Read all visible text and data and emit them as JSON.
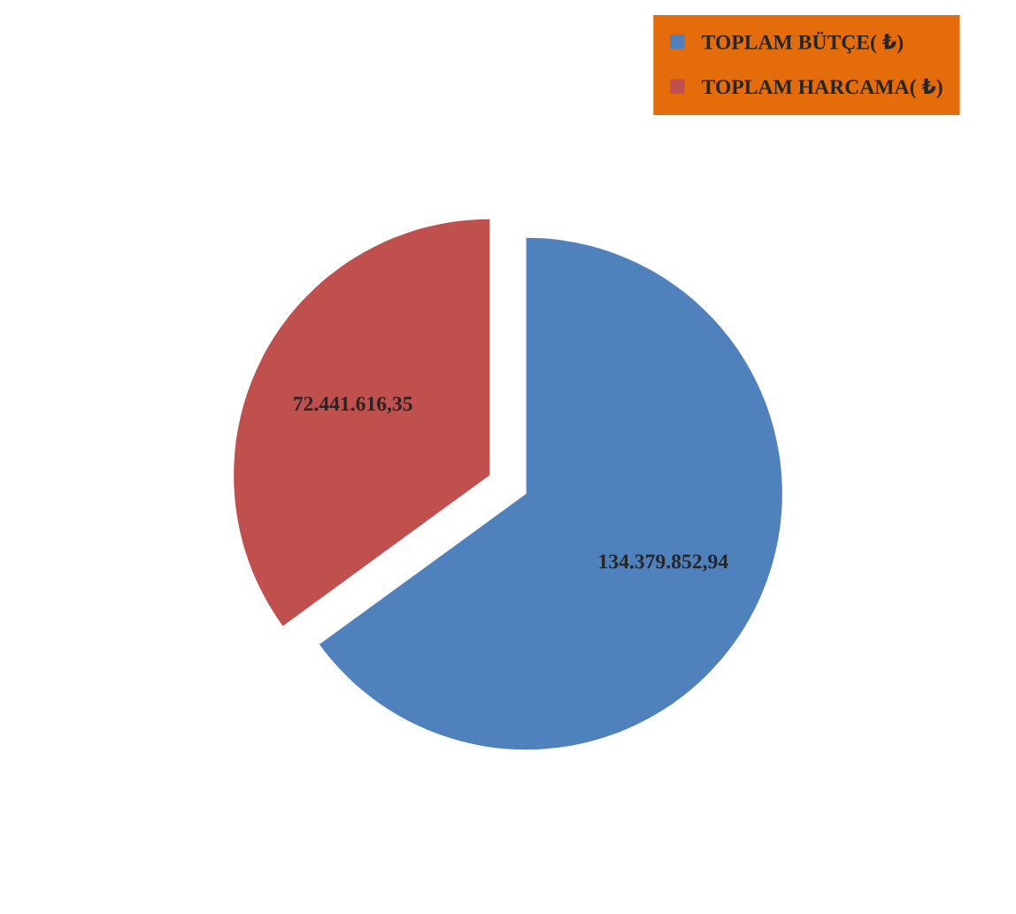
{
  "chart_data": {
    "type": "pie",
    "categories": [
      "TOPLAM BÜTÇE( ₺)",
      "TOPLAM HARCAMA( ₺)"
    ],
    "values": [
      134379852.94,
      72441616.35
    ],
    "value_labels": [
      "134.379.852,94",
      "72.441.616,35"
    ],
    "colors": [
      "#4f81bd",
      "#c0504d"
    ],
    "legend": "top right"
  }
}
